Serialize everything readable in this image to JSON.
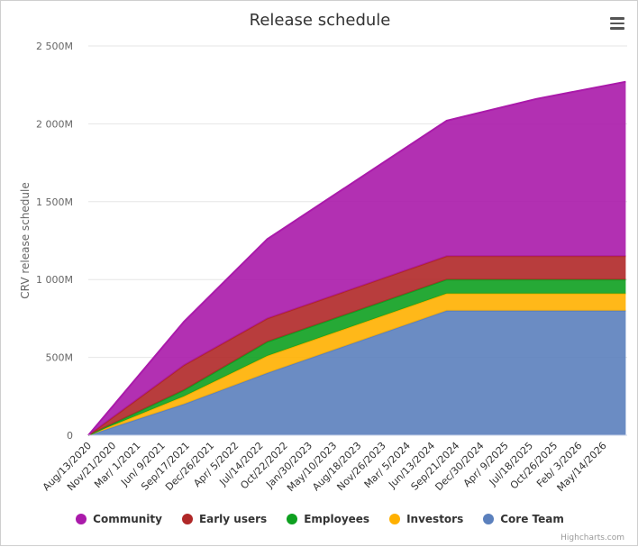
{
  "chart_data": {
    "type": "area",
    "stacked": true,
    "title": "Release schedule",
    "ylabel": "CRV release schedule",
    "xlabel": "",
    "ylim": [
      0,
      2500
    ],
    "yticks": [
      "0",
      "500M",
      "1 000M",
      "1 500M",
      "2 000M",
      "2 500M"
    ],
    "xticks": [
      "Aug/13/2020",
      "Nov/21/2020",
      "Mar/ 1/2021",
      "Jun/ 9/2021",
      "Sep/17/2021",
      "Dec/26/2021",
      "Apr/ 5/2022",
      "Jul/14/2022",
      "Oct/22/2022",
      "Jan/30/2023",
      "May/10/2023",
      "Aug/18/2023",
      "Nov/26/2023",
      "Mar/ 5/2024",
      "Jun/13/2024",
      "Sep/21/2024",
      "Dec/30/2024",
      "Apr/ 9/2025",
      "Jul/18/2025",
      "Oct/26/2025",
      "Feb/ 3/2026",
      "May/14/2026"
    ],
    "grid": true,
    "legend_position": "bottom",
    "x_dates": [
      "Aug/13/2020",
      "Sep/7/2021",
      "Aug/13/2022",
      "Aug/13/2024",
      "Aug/13/2025",
      "Aug/13/2026"
    ],
    "series": [
      {
        "name": "Core Team",
        "color": "#5b80bd",
        "values": [
          0,
          200,
          400,
          800,
          800,
          800
        ]
      },
      {
        "name": "Investors",
        "color": "#ffb000",
        "values": [
          0,
          50,
          110,
          110,
          110,
          110
        ]
      },
      {
        "name": "Employees",
        "color": "#0ea020",
        "values": [
          0,
          40,
          90,
          90,
          90,
          90
        ]
      },
      {
        "name": "Early users",
        "color": "#b02828",
        "values": [
          0,
          160,
          150,
          150,
          150,
          150
        ]
      },
      {
        "name": "Community",
        "color": "#aa1aaa",
        "values": [
          0,
          280,
          510,
          870,
          1010,
          1120
        ]
      }
    ]
  },
  "ui": {
    "menu_icon": "hamburger-menu-icon",
    "credits": "Highcharts.com"
  }
}
